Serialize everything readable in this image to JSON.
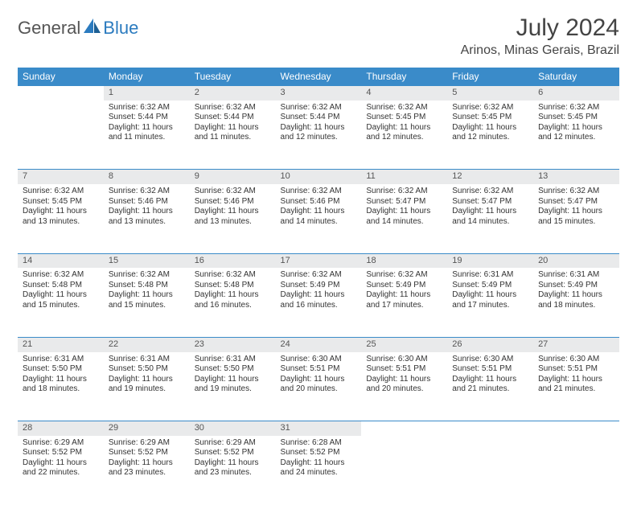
{
  "logo": {
    "part1": "General",
    "part2": "Blue"
  },
  "title": "July 2024",
  "location": "Arinos, Minas Gerais, Brazil",
  "colors": {
    "header_bg": "#3a8bc9",
    "daynum_bg": "#e9eaeb",
    "logo_accent": "#2b7bbf"
  },
  "day_headers": [
    "Sunday",
    "Monday",
    "Tuesday",
    "Wednesday",
    "Thursday",
    "Friday",
    "Saturday"
  ],
  "weeks": [
    {
      "nums": [
        "",
        "1",
        "2",
        "3",
        "4",
        "5",
        "6"
      ],
      "cells": [
        null,
        {
          "sunrise": "Sunrise: 6:32 AM",
          "sunset": "Sunset: 5:44 PM",
          "day1": "Daylight: 11 hours",
          "day2": "and 11 minutes."
        },
        {
          "sunrise": "Sunrise: 6:32 AM",
          "sunset": "Sunset: 5:44 PM",
          "day1": "Daylight: 11 hours",
          "day2": "and 11 minutes."
        },
        {
          "sunrise": "Sunrise: 6:32 AM",
          "sunset": "Sunset: 5:44 PM",
          "day1": "Daylight: 11 hours",
          "day2": "and 12 minutes."
        },
        {
          "sunrise": "Sunrise: 6:32 AM",
          "sunset": "Sunset: 5:45 PM",
          "day1": "Daylight: 11 hours",
          "day2": "and 12 minutes."
        },
        {
          "sunrise": "Sunrise: 6:32 AM",
          "sunset": "Sunset: 5:45 PM",
          "day1": "Daylight: 11 hours",
          "day2": "and 12 minutes."
        },
        {
          "sunrise": "Sunrise: 6:32 AM",
          "sunset": "Sunset: 5:45 PM",
          "day1": "Daylight: 11 hours",
          "day2": "and 12 minutes."
        }
      ]
    },
    {
      "nums": [
        "7",
        "8",
        "9",
        "10",
        "11",
        "12",
        "13"
      ],
      "cells": [
        {
          "sunrise": "Sunrise: 6:32 AM",
          "sunset": "Sunset: 5:45 PM",
          "day1": "Daylight: 11 hours",
          "day2": "and 13 minutes."
        },
        {
          "sunrise": "Sunrise: 6:32 AM",
          "sunset": "Sunset: 5:46 PM",
          "day1": "Daylight: 11 hours",
          "day2": "and 13 minutes."
        },
        {
          "sunrise": "Sunrise: 6:32 AM",
          "sunset": "Sunset: 5:46 PM",
          "day1": "Daylight: 11 hours",
          "day2": "and 13 minutes."
        },
        {
          "sunrise": "Sunrise: 6:32 AM",
          "sunset": "Sunset: 5:46 PM",
          "day1": "Daylight: 11 hours",
          "day2": "and 14 minutes."
        },
        {
          "sunrise": "Sunrise: 6:32 AM",
          "sunset": "Sunset: 5:47 PM",
          "day1": "Daylight: 11 hours",
          "day2": "and 14 minutes."
        },
        {
          "sunrise": "Sunrise: 6:32 AM",
          "sunset": "Sunset: 5:47 PM",
          "day1": "Daylight: 11 hours",
          "day2": "and 14 minutes."
        },
        {
          "sunrise": "Sunrise: 6:32 AM",
          "sunset": "Sunset: 5:47 PM",
          "day1": "Daylight: 11 hours",
          "day2": "and 15 minutes."
        }
      ]
    },
    {
      "nums": [
        "14",
        "15",
        "16",
        "17",
        "18",
        "19",
        "20"
      ],
      "cells": [
        {
          "sunrise": "Sunrise: 6:32 AM",
          "sunset": "Sunset: 5:48 PM",
          "day1": "Daylight: 11 hours",
          "day2": "and 15 minutes."
        },
        {
          "sunrise": "Sunrise: 6:32 AM",
          "sunset": "Sunset: 5:48 PM",
          "day1": "Daylight: 11 hours",
          "day2": "and 15 minutes."
        },
        {
          "sunrise": "Sunrise: 6:32 AM",
          "sunset": "Sunset: 5:48 PM",
          "day1": "Daylight: 11 hours",
          "day2": "and 16 minutes."
        },
        {
          "sunrise": "Sunrise: 6:32 AM",
          "sunset": "Sunset: 5:49 PM",
          "day1": "Daylight: 11 hours",
          "day2": "and 16 minutes."
        },
        {
          "sunrise": "Sunrise: 6:32 AM",
          "sunset": "Sunset: 5:49 PM",
          "day1": "Daylight: 11 hours",
          "day2": "and 17 minutes."
        },
        {
          "sunrise": "Sunrise: 6:31 AM",
          "sunset": "Sunset: 5:49 PM",
          "day1": "Daylight: 11 hours",
          "day2": "and 17 minutes."
        },
        {
          "sunrise": "Sunrise: 6:31 AM",
          "sunset": "Sunset: 5:49 PM",
          "day1": "Daylight: 11 hours",
          "day2": "and 18 minutes."
        }
      ]
    },
    {
      "nums": [
        "21",
        "22",
        "23",
        "24",
        "25",
        "26",
        "27"
      ],
      "cells": [
        {
          "sunrise": "Sunrise: 6:31 AM",
          "sunset": "Sunset: 5:50 PM",
          "day1": "Daylight: 11 hours",
          "day2": "and 18 minutes."
        },
        {
          "sunrise": "Sunrise: 6:31 AM",
          "sunset": "Sunset: 5:50 PM",
          "day1": "Daylight: 11 hours",
          "day2": "and 19 minutes."
        },
        {
          "sunrise": "Sunrise: 6:31 AM",
          "sunset": "Sunset: 5:50 PM",
          "day1": "Daylight: 11 hours",
          "day2": "and 19 minutes."
        },
        {
          "sunrise": "Sunrise: 6:30 AM",
          "sunset": "Sunset: 5:51 PM",
          "day1": "Daylight: 11 hours",
          "day2": "and 20 minutes."
        },
        {
          "sunrise": "Sunrise: 6:30 AM",
          "sunset": "Sunset: 5:51 PM",
          "day1": "Daylight: 11 hours",
          "day2": "and 20 minutes."
        },
        {
          "sunrise": "Sunrise: 6:30 AM",
          "sunset": "Sunset: 5:51 PM",
          "day1": "Daylight: 11 hours",
          "day2": "and 21 minutes."
        },
        {
          "sunrise": "Sunrise: 6:30 AM",
          "sunset": "Sunset: 5:51 PM",
          "day1": "Daylight: 11 hours",
          "day2": "and 21 minutes."
        }
      ]
    },
    {
      "nums": [
        "28",
        "29",
        "30",
        "31",
        "",
        "",
        ""
      ],
      "cells": [
        {
          "sunrise": "Sunrise: 6:29 AM",
          "sunset": "Sunset: 5:52 PM",
          "day1": "Daylight: 11 hours",
          "day2": "and 22 minutes."
        },
        {
          "sunrise": "Sunrise: 6:29 AM",
          "sunset": "Sunset: 5:52 PM",
          "day1": "Daylight: 11 hours",
          "day2": "and 23 minutes."
        },
        {
          "sunrise": "Sunrise: 6:29 AM",
          "sunset": "Sunset: 5:52 PM",
          "day1": "Daylight: 11 hours",
          "day2": "and 23 minutes."
        },
        {
          "sunrise": "Sunrise: 6:28 AM",
          "sunset": "Sunset: 5:52 PM",
          "day1": "Daylight: 11 hours",
          "day2": "and 24 minutes."
        },
        null,
        null,
        null
      ]
    }
  ]
}
